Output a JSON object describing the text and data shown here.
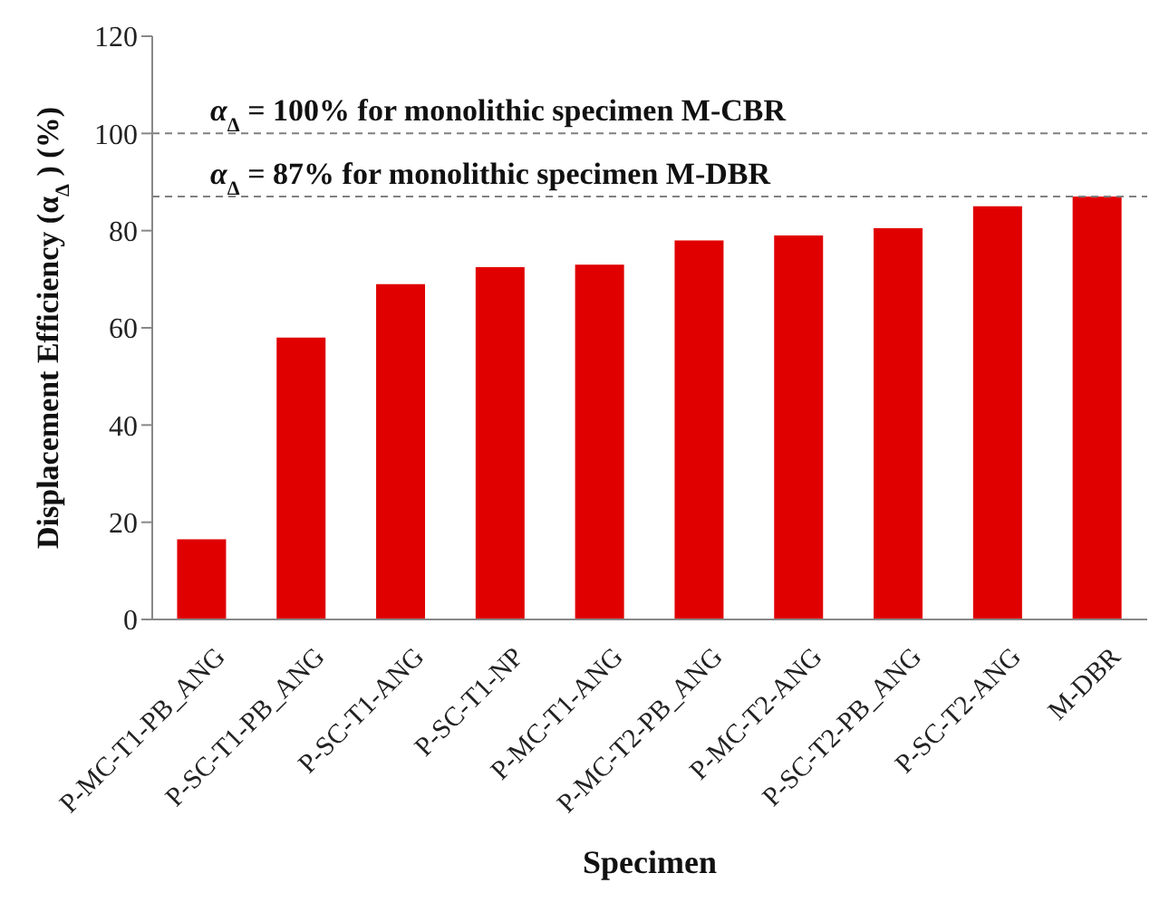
{
  "chart_data": {
    "type": "bar",
    "xlabel": "Specimen",
    "ylabel": "Displacement Efficiency (α$_{Δ}$) (%)",
    "categories": [
      "P-MC-T1-PB_ANG",
      "P-SC-T1-PB_ANG",
      "P-SC-T1-ANG",
      "P-SC-T1-NP",
      "P-MC-T1-ANG",
      "P-MC-T2-PB_ANG",
      "P-MC-T2-ANG",
      "P-SC-T2-PB_ANG",
      "P-SC-T2-ANG",
      "M-DBR"
    ],
    "values": [
      16.5,
      58,
      69,
      72.5,
      73,
      78,
      79,
      80.5,
      85,
      87
    ],
    "color": "#e00000",
    "ylim": [
      0,
      120
    ],
    "yticks": [
      0,
      20,
      40,
      60,
      80,
      100,
      120
    ],
    "grid": false,
    "legend": false,
    "ref_lines": [
      {
        "axis": "y",
        "value": 100,
        "label": "α$_{Δ}$ = 100% for monolithic specimen M-CBR",
        "color": "#808080",
        "line_style": "dashed"
      },
      {
        "axis": "y",
        "value": 87,
        "label": "α$_{Δ}$ = 87% for monolithic specimen M-DBR",
        "color": "#808080",
        "line_style": "dashed"
      }
    ]
  }
}
